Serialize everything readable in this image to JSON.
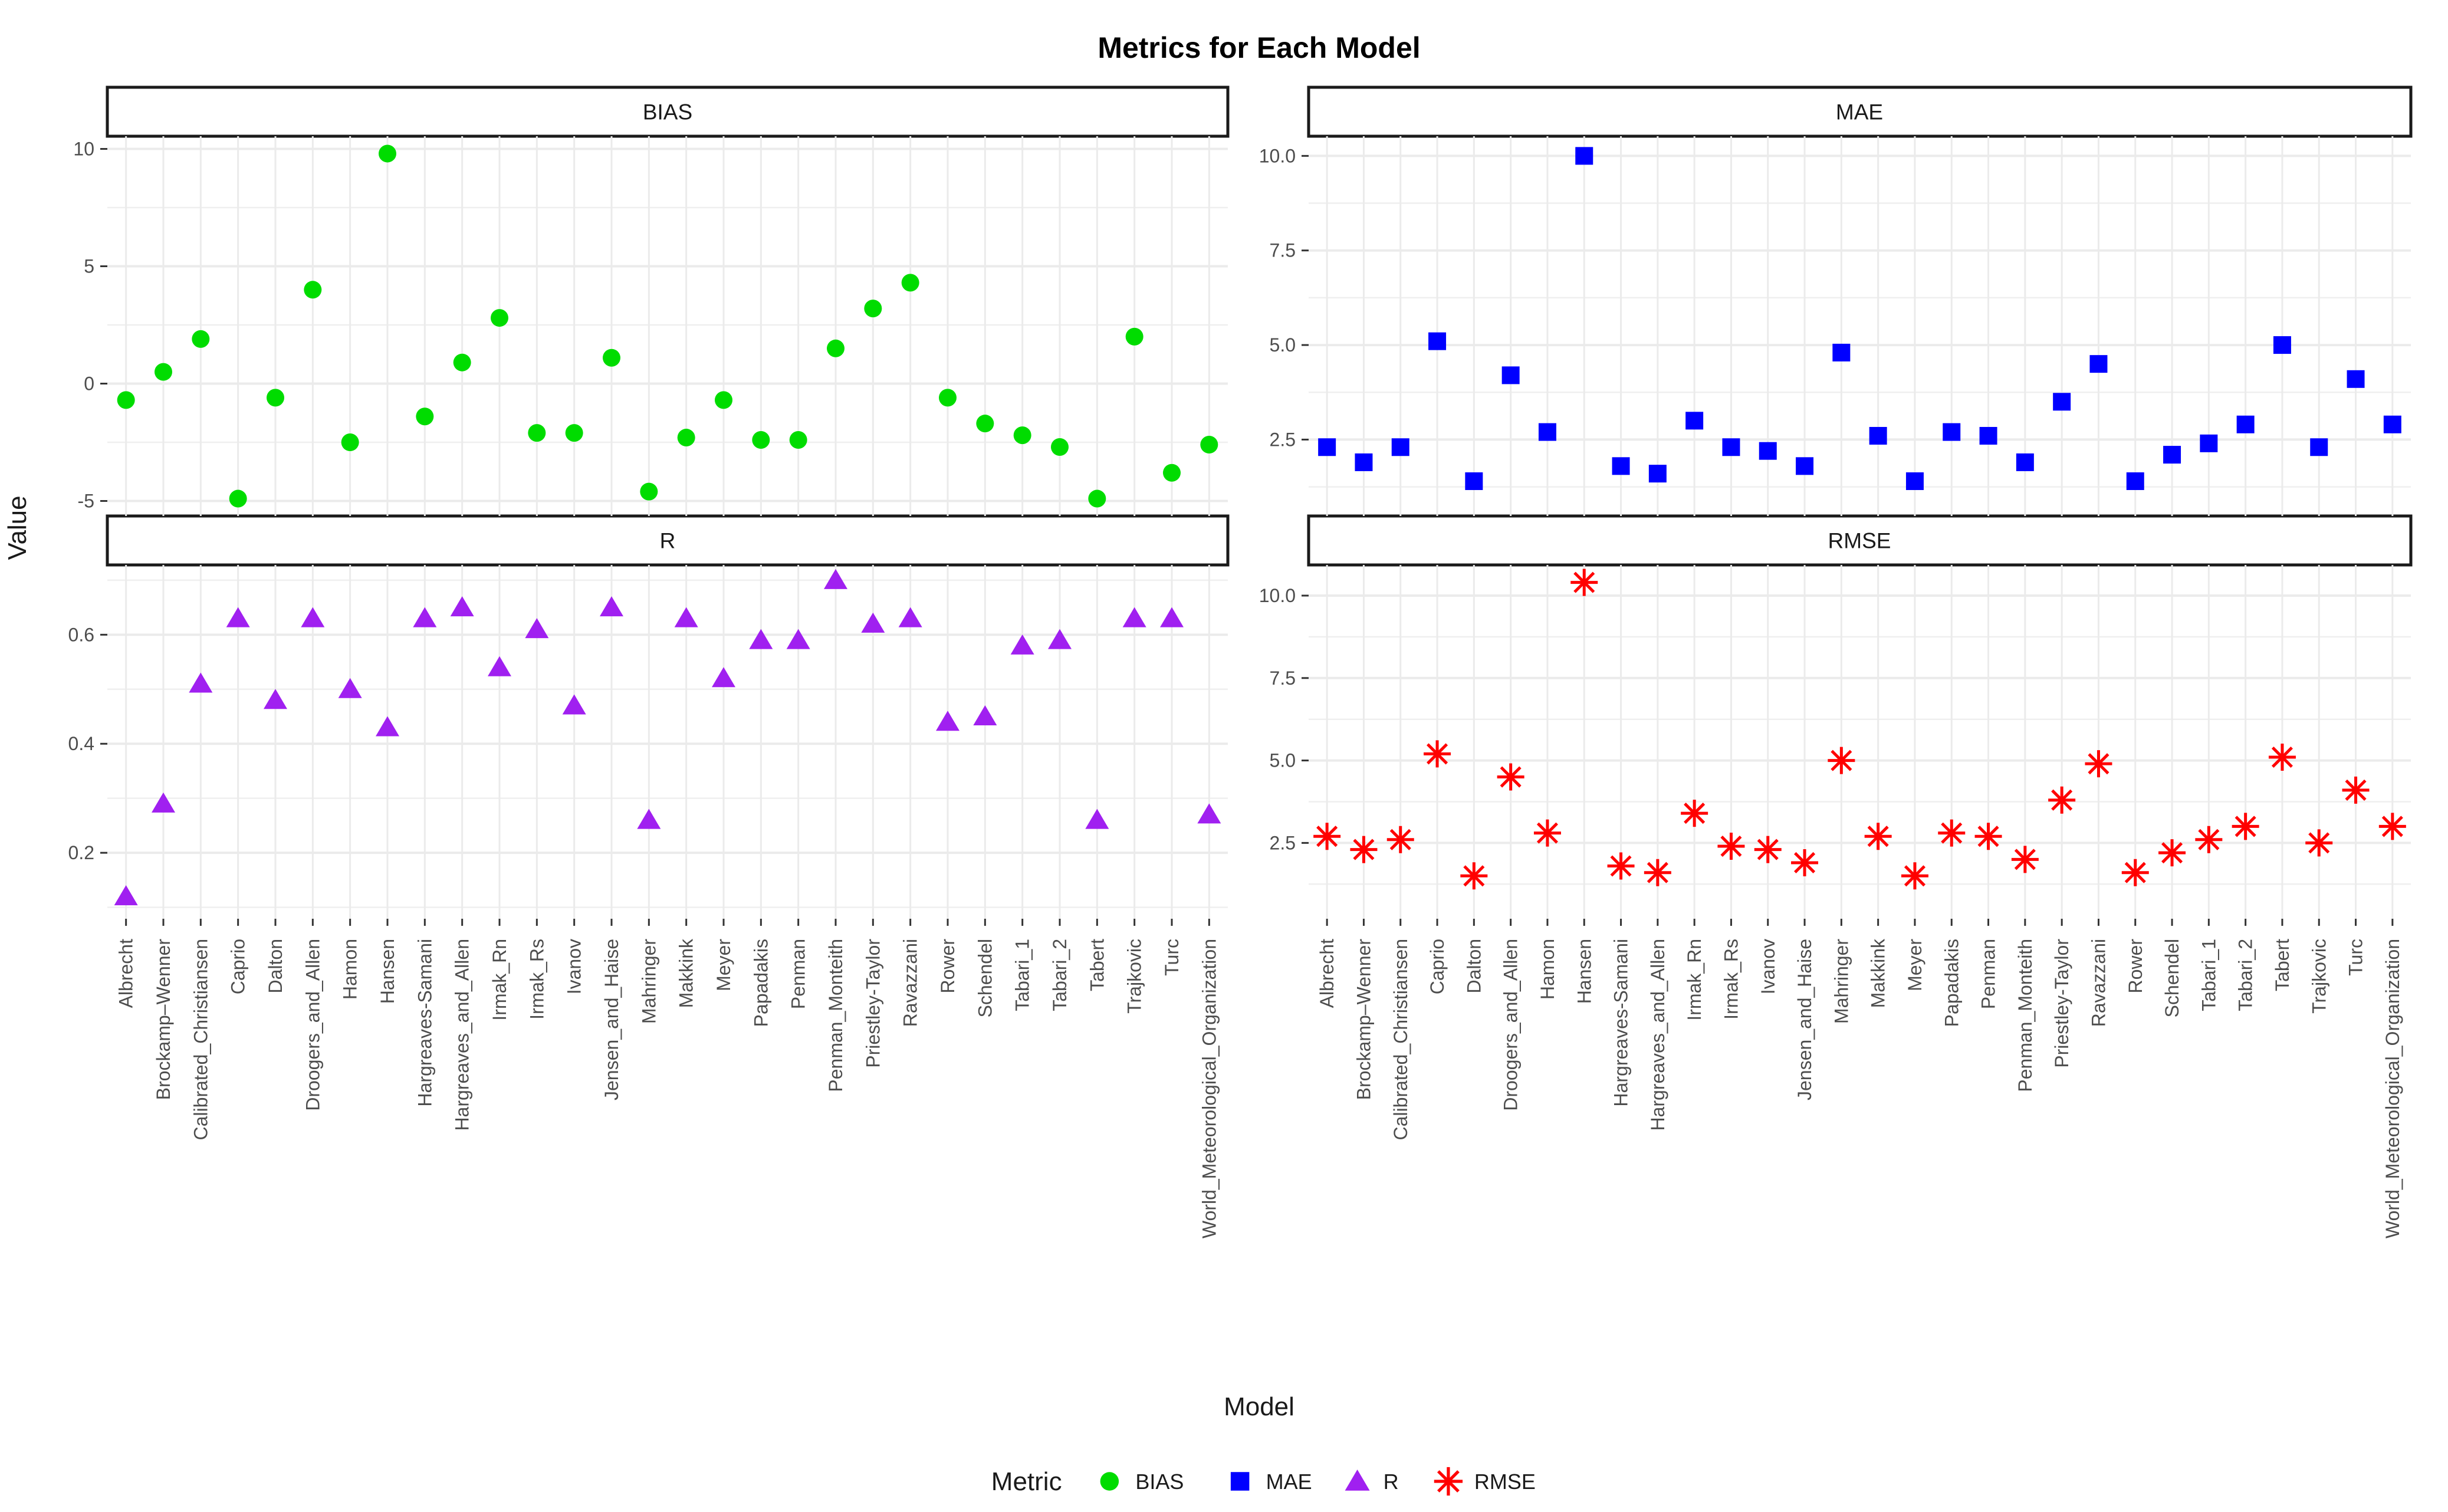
{
  "title": "Metrics for Each Model",
  "y_axis_title": "Value",
  "x_axis_title": "Model",
  "legend": {
    "title": "Metric",
    "entries": [
      {
        "label": "BIAS",
        "marker": "circle",
        "color": "#00DC00"
      },
      {
        "label": "MAE",
        "marker": "square",
        "color": "#0000FF"
      },
      {
        "label": "R",
        "marker": "triangle",
        "color": "#A020F0"
      },
      {
        "label": "RMSE",
        "marker": "asterisk",
        "color": "#FF0000"
      }
    ]
  },
  "chart_data": {
    "type": "scatter",
    "facet_layout": "2x2",
    "grid": "on",
    "legend_position": "bottom",
    "categories": [
      "Albrecht",
      "Brockamp–Wenner",
      "Calibrated_Christiansen",
      "Caprio",
      "Dalton",
      "Droogers_and_Allen",
      "Hamon",
      "Hansen",
      "Hargreaves-Samani",
      "Hargreaves_and_Allen",
      "Irmak_Rn",
      "Irmak_Rs",
      "Ivanov",
      "Jensen_and_Haise",
      "Mahringer",
      "Makkink",
      "Meyer",
      "Papadakis",
      "Penman",
      "Penman_Monteith",
      "Priestley-Taylor",
      "Ravazzani",
      "Rower",
      "Schendel",
      "Tabari_1",
      "Tabari_2",
      "Tabert",
      "Trajkovic",
      "Turc",
      "World_Meteorological_Organization"
    ],
    "facets": [
      {
        "title": "BIAS",
        "marker": "circle",
        "color": "#00DC00",
        "ylim": [
          -5.64,
          10.54
        ],
        "yticks": [
          {
            "label": "10",
            "value": 10
          },
          {
            "label": "5",
            "value": 5
          },
          {
            "label": "0",
            "value": 0
          },
          {
            "label": "-5",
            "value": -5
          }
        ],
        "yminor": [
          7.5,
          2.5,
          -2.5
        ],
        "values": [
          -0.7,
          0.5,
          1.9,
          -4.9,
          -0.6,
          4.0,
          -2.5,
          9.8,
          -1.4,
          0.9,
          2.8,
          -2.1,
          -2.1,
          1.1,
          -4.6,
          -2.3,
          -0.7,
          -2.4,
          -2.4,
          1.5,
          3.2,
          4.3,
          -0.6,
          -1.7,
          -2.2,
          -2.7,
          -4.9,
          2.0,
          -3.8,
          -2.6
        ]
      },
      {
        "title": "MAE",
        "marker": "square",
        "color": "#0000FF",
        "ylim": [
          0.48,
          10.52
        ],
        "yticks": [
          {
            "label": "10.0",
            "value": 10
          },
          {
            "label": "7.5",
            "value": 7.5
          },
          {
            "label": "5.0",
            "value": 5
          },
          {
            "label": "2.5",
            "value": 2.5
          }
        ],
        "yminor": [
          8.75,
          6.25,
          3.75,
          1.25
        ],
        "values": [
          2.3,
          1.9,
          2.3,
          5.1,
          1.4,
          4.2,
          2.7,
          10.0,
          1.8,
          1.6,
          3.0,
          2.3,
          2.2,
          1.8,
          4.8,
          2.6,
          1.4,
          2.7,
          2.6,
          1.9,
          3.5,
          4.5,
          1.4,
          2.1,
          2.4,
          2.9,
          5.0,
          2.3,
          4.1,
          2.9
        ]
      },
      {
        "title": "R",
        "marker": "triangle",
        "color": "#A020F0",
        "ylim": [
          0.079,
          0.728
        ],
        "yticks": [
          {
            "label": "0.6",
            "value": 0.6
          },
          {
            "label": "0.4",
            "value": 0.4
          },
          {
            "label": "0.2",
            "value": 0.2
          }
        ],
        "yminor": [
          0.7,
          0.5,
          0.3,
          0.1
        ],
        "values": [
          0.12,
          0.29,
          0.51,
          0.63,
          0.48,
          0.63,
          0.5,
          0.43,
          0.63,
          0.65,
          0.54,
          0.61,
          0.47,
          0.65,
          0.26,
          0.63,
          0.52,
          0.59,
          0.59,
          0.7,
          0.62,
          0.63,
          0.44,
          0.45,
          0.58,
          0.59,
          0.26,
          0.63,
          0.63,
          0.27
        ]
      },
      {
        "title": "RMSE",
        "marker": "asterisk",
        "color": "#FF0000",
        "ylim": [
          0.2,
          10.93
        ],
        "yticks": [
          {
            "label": "10.0",
            "value": 10
          },
          {
            "label": "7.5",
            "value": 7.5
          },
          {
            "label": "5.0",
            "value": 5
          },
          {
            "label": "2.5",
            "value": 2.5
          }
        ],
        "yminor": [
          8.75,
          6.25,
          3.75,
          1.25
        ],
        "values": [
          2.7,
          2.3,
          2.6,
          5.2,
          1.5,
          4.5,
          2.8,
          10.4,
          1.8,
          1.6,
          3.4,
          2.4,
          2.3,
          1.9,
          5.0,
          2.7,
          1.5,
          2.8,
          2.7,
          2.0,
          3.8,
          4.9,
          1.6,
          2.2,
          2.6,
          3.0,
          5.1,
          2.5,
          4.1,
          3.0
        ]
      }
    ]
  }
}
